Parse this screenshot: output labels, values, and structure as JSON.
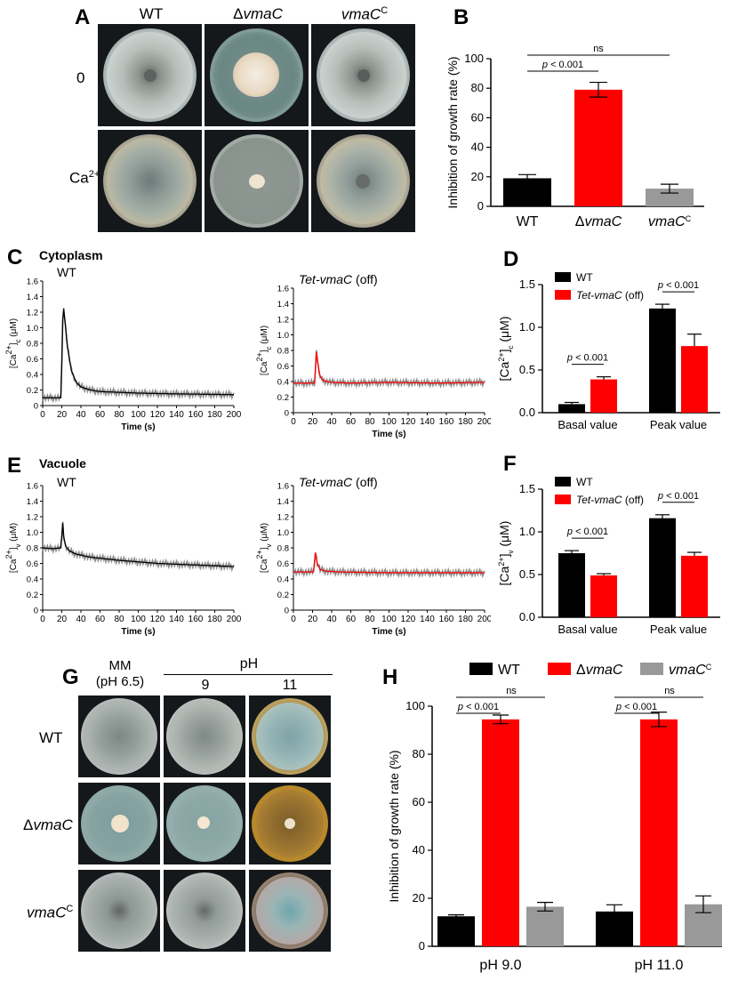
{
  "panels": {
    "A": "A",
    "B": "B",
    "C": "C",
    "D": "D",
    "E": "E",
    "F": "F",
    "G": "G",
    "H": "H"
  },
  "panel_a": {
    "columns": [
      {
        "prefix": "",
        "italic": "",
        "plain": "WT",
        "sup": ""
      },
      {
        "prefix": "Δ",
        "italic": "vmaC",
        "plain": "",
        "sup": ""
      },
      {
        "prefix": "",
        "italic": "vmaC",
        "plain": "",
        "sup": "C"
      }
    ],
    "rows": [
      {
        "label": "0",
        "sup": ""
      },
      {
        "label": "Ca",
        "sup": "2+"
      }
    ]
  },
  "panel_c": {
    "section": "Cytoplasm",
    "left_title": "WT",
    "right_title_italic": "Tet-vmaC",
    "right_title_plain": " (off)"
  },
  "panel_e": {
    "section": "Vacuole",
    "left_title": "WT",
    "right_title_italic": "Tet-vmaC",
    "right_title_plain": " (off)"
  },
  "panel_g": {
    "col_mm_line1": "MM",
    "col_mm_line2": "(pH 6.5)",
    "ph_header": "pH",
    "ph_values": [
      "9",
      "11"
    ],
    "rows": [
      {
        "prefix": "",
        "italic": "",
        "plain": "WT",
        "sup": ""
      },
      {
        "prefix": "Δ",
        "italic": "vmaC",
        "plain": "",
        "sup": ""
      },
      {
        "prefix": "",
        "italic": "vmaC",
        "plain": "",
        "sup": "C"
      }
    ]
  },
  "colors": {
    "wt": "#000000",
    "mutant": "#ff0000",
    "complement": "#999999",
    "trace_gray": "#8c8c8c"
  },
  "chart_data": [
    {
      "id": "B",
      "type": "bar",
      "title": "",
      "ylabel": "Inhibition of growth rate (%)",
      "ylim": [
        0,
        100
      ],
      "yticks": [
        0,
        20,
        40,
        60,
        80,
        100
      ],
      "categories": [
        {
          "prefix": "",
          "italic": "",
          "plain": "WT",
          "sup": ""
        },
        {
          "prefix": "Δ",
          "italic": "vmaC",
          "plain": "",
          "sup": ""
        },
        {
          "prefix": "",
          "italic": "vmaC",
          "plain": "",
          "sup": "C"
        }
      ],
      "values": [
        19,
        79,
        12
      ],
      "errors": [
        2.5,
        5,
        3
      ],
      "annotations": [
        {
          "label": "p < 0.001",
          "from": 0,
          "to": 1
        },
        {
          "label": "ns",
          "from": 0,
          "to": 2
        }
      ]
    },
    {
      "id": "C1",
      "type": "line",
      "title": "WT",
      "xlabel": "Time (s)",
      "ylabel": "[Ca2+]c (μM)",
      "xlim": [
        0,
        200
      ],
      "ylim": [
        0,
        1.6
      ],
      "xticks": [
        0,
        20,
        40,
        60,
        80,
        100,
        120,
        140,
        160,
        180,
        200
      ],
      "yticks": [
        0,
        0.2,
        0.4,
        0.6,
        0.8,
        1.0,
        1.2,
        1.4,
        1.6
      ],
      "series": [
        {
          "name": "WT",
          "color": "#000000",
          "x": [
            0,
            19,
            20,
            21,
            22,
            24,
            26,
            30,
            35,
            40,
            50,
            60,
            80,
            100,
            140,
            200
          ],
          "y": [
            0.1,
            0.1,
            0.55,
            1.1,
            1.25,
            1.0,
            0.75,
            0.45,
            0.3,
            0.24,
            0.2,
            0.18,
            0.17,
            0.16,
            0.15,
            0.14
          ]
        }
      ]
    },
    {
      "id": "C2",
      "type": "line",
      "title": "Tet-vmaC (off)",
      "xlabel": "Time (s)",
      "ylabel": "[Ca2+]c (μM)",
      "xlim": [
        0,
        200
      ],
      "ylim": [
        0,
        1.6
      ],
      "xticks": [
        0,
        20,
        40,
        60,
        80,
        100,
        120,
        140,
        160,
        180,
        200
      ],
      "yticks": [
        0,
        0.2,
        0.4,
        0.6,
        0.8,
        1.0,
        1.2,
        1.4,
        1.6
      ],
      "series": [
        {
          "name": "Tet-vmaC (off)",
          "color": "#ff0000",
          "x": [
            0,
            22,
            23,
            24,
            25,
            27,
            30,
            35,
            40,
            60,
            100,
            150,
            200
          ],
          "y": [
            0.38,
            0.38,
            0.55,
            0.78,
            0.7,
            0.5,
            0.42,
            0.4,
            0.39,
            0.38,
            0.39,
            0.38,
            0.39
          ]
        }
      ]
    },
    {
      "id": "D",
      "type": "bar",
      "ylabel": "[Ca2+]c (μM)",
      "ylim": [
        0,
        1.5
      ],
      "yticks": [
        0.0,
        0.5,
        1.0,
        1.5
      ],
      "categories": [
        "Basal value",
        "Peak value"
      ],
      "legend": [
        {
          "name": "WT",
          "italic": "",
          "color": "#000000"
        },
        {
          "name": " (off)",
          "italic": "Tet-vmaC",
          "color": "#ff0000"
        }
      ],
      "series": [
        {
          "name": "WT",
          "values": [
            0.1,
            1.22
          ],
          "errors": [
            0.02,
            0.05
          ]
        },
        {
          "name": "Tet-vmaC (off)",
          "values": [
            0.39,
            0.78
          ],
          "errors": [
            0.03,
            0.14
          ]
        }
      ],
      "annotations": [
        "p < 0.001",
        "p < 0.001"
      ]
    },
    {
      "id": "E1",
      "type": "line",
      "title": "WT",
      "xlabel": "Time (s)",
      "ylabel": "[Ca2+]v (μM)",
      "xlim": [
        0,
        200
      ],
      "ylim": [
        0,
        1.6
      ],
      "xticks": [
        0,
        20,
        40,
        60,
        80,
        100,
        120,
        140,
        160,
        180,
        200
      ],
      "yticks": [
        0,
        0.2,
        0.4,
        0.6,
        0.8,
        1.0,
        1.2,
        1.4,
        1.6
      ],
      "series": [
        {
          "name": "WT",
          "color": "#000000",
          "x": [
            0,
            10,
            19,
            20,
            21,
            22,
            24,
            28,
            35,
            50,
            80,
            120,
            160,
            200
          ],
          "y": [
            0.8,
            0.79,
            0.8,
            0.95,
            1.12,
            0.95,
            0.82,
            0.76,
            0.72,
            0.68,
            0.64,
            0.6,
            0.58,
            0.56
          ]
        }
      ]
    },
    {
      "id": "E2",
      "type": "line",
      "title": "Tet-vmaC (off)",
      "xlabel": "Time (s)",
      "ylabel": "[Ca2+]v (μM)",
      "xlim": [
        0,
        200
      ],
      "ylim": [
        0,
        1.6
      ],
      "xticks": [
        0,
        20,
        40,
        60,
        80,
        100,
        120,
        140,
        160,
        180,
        200
      ],
      "yticks": [
        0,
        0.2,
        0.4,
        0.6,
        0.8,
        1.0,
        1.2,
        1.4,
        1.6
      ],
      "series": [
        {
          "name": "Tet-vmaC (off)",
          "color": "#ff0000",
          "x": [
            0,
            21,
            22,
            23,
            25,
            28,
            35,
            50,
            100,
            150,
            200
          ],
          "y": [
            0.49,
            0.49,
            0.62,
            0.74,
            0.6,
            0.52,
            0.5,
            0.49,
            0.48,
            0.48,
            0.48
          ]
        }
      ]
    },
    {
      "id": "F",
      "type": "bar",
      "ylabel": "[Ca2+]v (μM)",
      "ylim": [
        0,
        1.5
      ],
      "yticks": [
        0.0,
        0.5,
        1.0,
        1.5
      ],
      "categories": [
        "Basal value",
        "Peak value"
      ],
      "legend": [
        {
          "name": "WT",
          "italic": "",
          "color": "#000000"
        },
        {
          "name": " (off)",
          "italic": "Tet-vmaC",
          "color": "#ff0000"
        }
      ],
      "series": [
        {
          "name": "WT",
          "values": [
            0.75,
            1.16
          ],
          "errors": [
            0.03,
            0.04
          ]
        },
        {
          "name": "Tet-vmaC (off)",
          "values": [
            0.49,
            0.72
          ],
          "errors": [
            0.02,
            0.04
          ]
        }
      ],
      "annotations": [
        "p < 0.001",
        "p < 0.001"
      ]
    },
    {
      "id": "H",
      "type": "bar",
      "ylabel": "Inhibition of growth rate (%)",
      "ylim": [
        0,
        100
      ],
      "yticks": [
        0,
        20,
        40,
        60,
        80,
        100
      ],
      "categories": [
        "pH 9.0",
        "pH 11.0"
      ],
      "legend": [
        {
          "prefix": "",
          "italic": "",
          "plain": "WT",
          "sup": "",
          "color": "#000000"
        },
        {
          "prefix": "Δ",
          "italic": "vmaC",
          "plain": "",
          "sup": "",
          "color": "#ff0000"
        },
        {
          "prefix": "",
          "italic": "vmaC",
          "plain": "",
          "sup": "C",
          "color": "#999999"
        }
      ],
      "series": [
        {
          "name": "WT",
          "values": [
            12.5,
            14.5
          ],
          "errors": [
            0.6,
            2.8
          ]
        },
        {
          "name": "ΔvmaC",
          "values": [
            94.5,
            94.5
          ],
          "errors": [
            1.8,
            3.0
          ]
        },
        {
          "name": "vmaC^C",
          "values": [
            16.5,
            17.5
          ],
          "errors": [
            1.8,
            3.5
          ]
        }
      ],
      "annotations": [
        {
          "label": "p < 0.001"
        },
        {
          "label": "ns"
        },
        {
          "label": "p < 0.001"
        },
        {
          "label": "ns"
        }
      ]
    }
  ]
}
